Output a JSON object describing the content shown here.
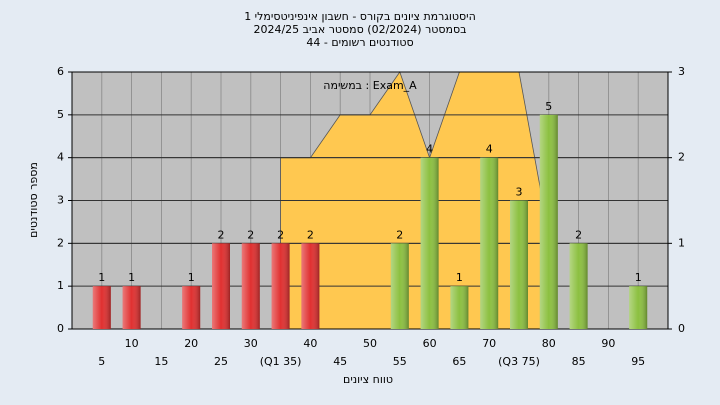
{
  "chart_data": {
    "type": "bar",
    "title": [
      "היסטוגרמת ציונים בקורס - חשבון אינפיניטסימלי 1",
      "בסמסטר  (02/2024)  סמסטר אביב 2024/25",
      "סטודנטים רשומים - 44"
    ],
    "annotation": "Exam_A : במשימה",
    "xlabel": "טווח ציונים",
    "ylabel": "מספר סטודנטים",
    "x": [
      5,
      10,
      20,
      25,
      30,
      35,
      40,
      55,
      60,
      65,
      70,
      75,
      80,
      85,
      95
    ],
    "values": [
      1,
      1,
      1,
      2,
      2,
      2,
      2,
      2,
      4,
      1,
      4,
      3,
      5,
      2,
      1
    ],
    "colors": [
      "#e03030",
      "#e03030",
      "#e03030",
      "#e03030",
      "#e03030",
      "#e03030",
      "#e03030",
      "#8cc040",
      "#8cc040",
      "#8cc040",
      "#8cc040",
      "#8cc040",
      "#8cc040",
      "#8cc040",
      "#8cc040"
    ],
    "area": {
      "color": "#ffc850",
      "axis": "y2",
      "x": [
        35,
        40,
        45,
        50,
        55,
        60,
        65,
        70,
        75,
        80
      ],
      "values": [
        2,
        2,
        2.5,
        2.5,
        3,
        2,
        3,
        3,
        3,
        1.1
      ]
    },
    "xlim": [
      0,
      100
    ],
    "xticks": [
      5,
      10,
      15,
      20,
      25,
      30,
      {
        "value": 35,
        "label": "(Q1 35)"
      },
      40,
      45,
      50,
      55,
      60,
      65,
      70,
      {
        "value": 75,
        "label": "(Q3 75)"
      },
      80,
      85,
      90,
      95
    ],
    "ylim": [
      0,
      6
    ],
    "yticks": [
      0,
      1,
      2,
      3,
      4,
      5,
      6
    ],
    "y2lim": [
      0,
      3
    ],
    "y2ticks": [
      0,
      1,
      2,
      3
    ],
    "grid": true
  }
}
